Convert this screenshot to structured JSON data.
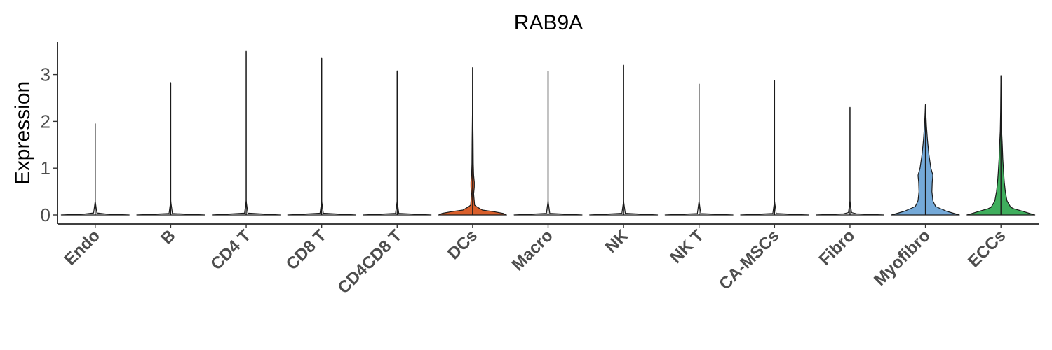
{
  "chart_data": {
    "type": "violin",
    "title": "RAB9A",
    "xlabel": "",
    "ylabel": "Expression",
    "ylim": [
      -0.2,
      3.7
    ],
    "yticks": [
      "0",
      "1",
      "2",
      "3"
    ],
    "categories": [
      "Endo",
      "B",
      "CD4 T",
      "CD8 T",
      "CD4CD8 T",
      "DCs",
      "Macro",
      "NK",
      "NK T",
      "CA-MSCs",
      "Fibro",
      "Myofibro",
      "ECCs"
    ],
    "groups": [
      {
        "name": "Endo",
        "max": 1.95,
        "color": "#ffffff",
        "density": [
          [
            0,
            1.0
          ],
          [
            0.03,
            0.05
          ],
          [
            0.3,
            0.0
          ]
        ]
      },
      {
        "name": "B",
        "max": 2.83,
        "color": "#ffffff",
        "density": [
          [
            0,
            1.0
          ],
          [
            0.03,
            0.05
          ],
          [
            0.3,
            0.0
          ]
        ]
      },
      {
        "name": "CD4 T",
        "max": 3.5,
        "color": "#ffffff",
        "density": [
          [
            0,
            1.0
          ],
          [
            0.03,
            0.05
          ],
          [
            0.3,
            0.0
          ]
        ]
      },
      {
        "name": "CD8 T",
        "max": 3.35,
        "color": "#ffffff",
        "density": [
          [
            0,
            1.0
          ],
          [
            0.03,
            0.05
          ],
          [
            0.3,
            0.0
          ]
        ]
      },
      {
        "name": "CD4CD8 T",
        "max": 3.08,
        "color": "#ffffff",
        "density": [
          [
            0,
            1.0
          ],
          [
            0.03,
            0.05
          ],
          [
            0.3,
            0.0
          ]
        ]
      },
      {
        "name": "DCs",
        "max": 3.15,
        "color": "#d95f2b",
        "density": [
          [
            0,
            1.0
          ],
          [
            0.05,
            0.85
          ],
          [
            0.1,
            0.3
          ],
          [
            0.2,
            0.06
          ],
          [
            0.45,
            0.03
          ],
          [
            0.6,
            0.05
          ],
          [
            0.7,
            0.05
          ],
          [
            0.85,
            0.03
          ],
          [
            1.1,
            0.02
          ],
          [
            1.6,
            0.015
          ],
          [
            2.2,
            0.005
          ],
          [
            3.15,
            0.0
          ]
        ]
      },
      {
        "name": "Macro",
        "max": 3.07,
        "color": "#ffffff",
        "density": [
          [
            0,
            1.0
          ],
          [
            0.03,
            0.05
          ],
          [
            0.3,
            0.0
          ]
        ]
      },
      {
        "name": "NK",
        "max": 3.2,
        "color": "#ffffff",
        "density": [
          [
            0,
            1.0
          ],
          [
            0.03,
            0.05
          ],
          [
            0.3,
            0.0
          ]
        ]
      },
      {
        "name": "NK T",
        "max": 2.8,
        "color": "#ffffff",
        "density": [
          [
            0,
            1.0
          ],
          [
            0.03,
            0.05
          ],
          [
            0.3,
            0.0
          ]
        ]
      },
      {
        "name": "CA-MSCs",
        "max": 2.87,
        "color": "#ffffff",
        "density": [
          [
            0,
            1.0
          ],
          [
            0.03,
            0.05
          ],
          [
            0.3,
            0.0
          ]
        ]
      },
      {
        "name": "Fibro",
        "max": 2.3,
        "color": "#ffffff",
        "density": [
          [
            0,
            1.0
          ],
          [
            0.03,
            0.05
          ],
          [
            0.3,
            0.0
          ]
        ]
      },
      {
        "name": "Myofibro",
        "max": 2.36,
        "color": "#74a9d8",
        "density": [
          [
            0,
            1.0
          ],
          [
            0.08,
            0.62
          ],
          [
            0.18,
            0.3
          ],
          [
            0.3,
            0.22
          ],
          [
            0.5,
            0.19
          ],
          [
            0.7,
            0.2
          ],
          [
            0.85,
            0.22
          ],
          [
            1.0,
            0.16
          ],
          [
            1.3,
            0.1
          ],
          [
            1.6,
            0.06
          ],
          [
            1.9,
            0.03
          ],
          [
            2.2,
            0.01
          ],
          [
            2.36,
            0.0
          ]
        ]
      },
      {
        "name": "ECCs",
        "max": 2.98,
        "color": "#3fae5d",
        "density": [
          [
            0,
            1.0
          ],
          [
            0.07,
            0.68
          ],
          [
            0.15,
            0.3
          ],
          [
            0.3,
            0.18
          ],
          [
            0.5,
            0.13
          ],
          [
            0.7,
            0.1
          ],
          [
            0.9,
            0.08
          ],
          [
            1.2,
            0.055
          ],
          [
            1.5,
            0.04
          ],
          [
            1.8,
            0.02
          ],
          [
            2.2,
            0.01
          ],
          [
            2.98,
            0.0
          ]
        ]
      }
    ]
  }
}
